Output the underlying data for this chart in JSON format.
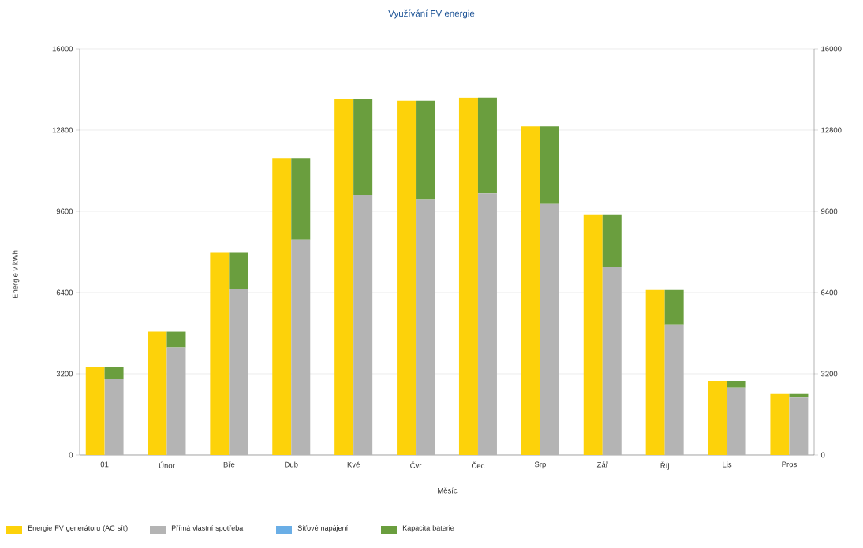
{
  "chart_data": {
    "type": "bar",
    "title": "Využívání FV energie",
    "xlabel": "Měsíc",
    "ylabel": "Energie v kWh",
    "categories": [
      "01",
      "Únor",
      "Bře",
      "Dub",
      "Kvě",
      "Čvr",
      "Čec",
      "Srp",
      "Zář",
      "Říj",
      "Lis",
      "Pros"
    ],
    "series": [
      {
        "name": "Energie FV generátoru (AC síť)",
        "color": "#fdd20a",
        "axis": "y",
        "values": [
          3450,
          4860,
          7970,
          11670,
          14040,
          13960,
          14080,
          12950,
          9450,
          6500,
          2920,
          2400
        ]
      },
      {
        "name": "Přímá vlastní spotřeba",
        "color": "#b4b4b4",
        "axis": "y2",
        "values": [
          2980,
          4240,
          6540,
          8490,
          10250,
          10050,
          10310,
          9890,
          7400,
          5130,
          2650,
          2260
        ]
      },
      {
        "name": "Síťové napájení",
        "color": "#6aaee6",
        "axis": "y2",
        "values": [
          0,
          0,
          0,
          0,
          0,
          0,
          0,
          0,
          0,
          0,
          0,
          0
        ]
      },
      {
        "name": "Kapacita baterie",
        "color": "#6a9e3e",
        "axis": "y2",
        "values": [
          470,
          620,
          1430,
          3180,
          3790,
          3910,
          3770,
          3060,
          2050,
          1370,
          270,
          140
        ]
      }
    ],
    "stacked": true,
    "grid": "y",
    "legend": "bottom",
    "ylim": [
      0,
      16000
    ],
    "yticks": [
      0,
      3200,
      6400,
      9600,
      12800,
      16000
    ],
    "y2lim": [
      0,
      16000
    ],
    "y2ticks": [
      0,
      3200,
      6400,
      9600,
      12800,
      16000
    ]
  }
}
